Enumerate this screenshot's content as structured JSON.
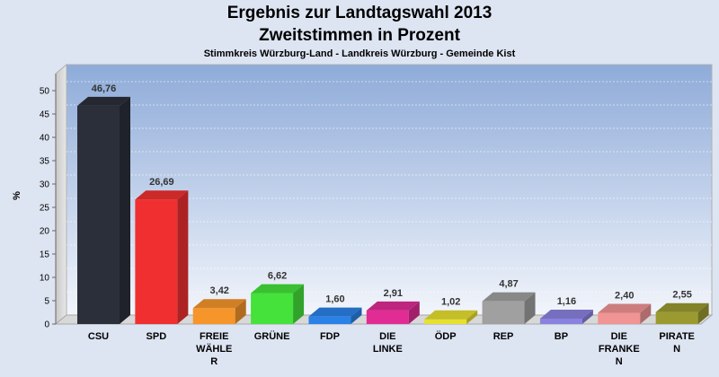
{
  "chart_data": {
    "type": "bar",
    "title": "Ergebnis zur Landtagswahl 2013",
    "subtitle": "Zweitstimmen in Prozent",
    "caption": "Stimmkreis Würzburg-Land - Landkreis Würzburg - Gemeinde Kist",
    "ylabel": "%",
    "ylim": [
      0,
      50
    ],
    "yticks": [
      "0",
      "5",
      "10",
      "15",
      "20",
      "25",
      "30",
      "35",
      "40",
      "45",
      "50"
    ],
    "categories": [
      [
        "CSU"
      ],
      [
        "SPD"
      ],
      [
        "FREIE",
        "WÄHLE",
        "R"
      ],
      [
        "GRÜNE"
      ],
      [
        "FDP"
      ],
      [
        "DIE",
        "LINKE"
      ],
      [
        "ÖDP"
      ],
      [
        "REP"
      ],
      [
        "BP"
      ],
      [
        "DIE",
        "FRANKE",
        "N"
      ],
      [
        "PIRATE",
        "N"
      ]
    ],
    "values": [
      46.76,
      26.69,
      3.42,
      6.62,
      1.6,
      2.91,
      1.02,
      4.87,
      1.16,
      2.4,
      2.55
    ],
    "value_labels": [
      "46,76",
      "26,69",
      "3,42",
      "6,62",
      "1,60",
      "2,91",
      "1,02",
      "4,87",
      "1,16",
      "2,40",
      "2,55"
    ],
    "colors": [
      "#2b2f3a",
      "#f03030",
      "#f5952a",
      "#44e23a",
      "#2a82e8",
      "#e02c94",
      "#e6e030",
      "#a0a0a0",
      "#8a82e0",
      "#f09494",
      "#9a9a30"
    ],
    "grid": true,
    "legend": "none"
  }
}
